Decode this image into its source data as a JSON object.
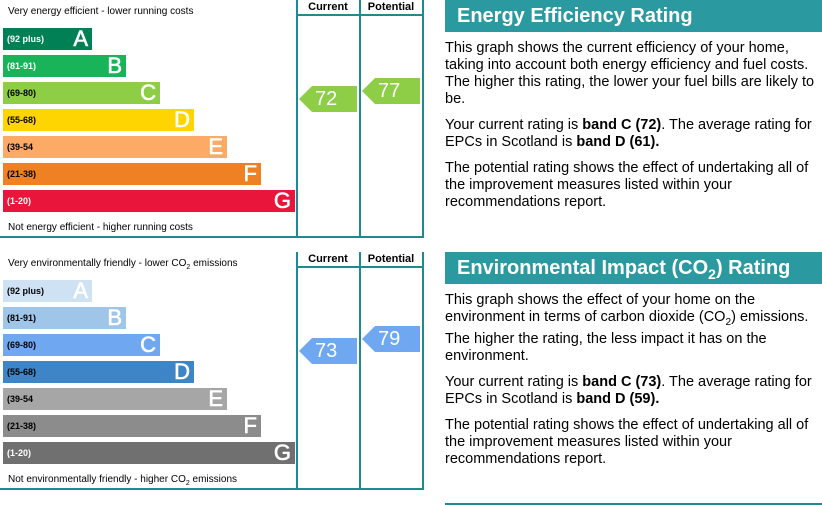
{
  "energy": {
    "top_label": "Very energy efficient - lower running costs",
    "bottom_label": "Not energy efficient - higher running costs",
    "header_current": "Current",
    "header_potential": "Potential",
    "bands": [
      {
        "range": "(92 plus)",
        "letter": "A",
        "color": "#008054",
        "text": "#fff",
        "letter_color": "#fff"
      },
      {
        "range": "(81-91)",
        "letter": "B",
        "color": "#19b459",
        "text": "#fff",
        "letter_color": "#fff"
      },
      {
        "range": "(69-80)",
        "letter": "C",
        "color": "#8dce46",
        "text": "#000",
        "letter_color": "#fff"
      },
      {
        "range": "(55-68)",
        "letter": "D",
        "color": "#ffd500",
        "text": "#000",
        "letter_color": "#fff"
      },
      {
        "range": "(39-54",
        "letter": "E",
        "color": "#fcaa65",
        "text": "#000",
        "letter_color": "#fff"
      },
      {
        "range": "(21-38)",
        "letter": "F",
        "color": "#ef8023",
        "text": "#000",
        "letter_color": "#fff"
      },
      {
        "range": "(1-20)",
        "letter": "G",
        "color": "#e9153b",
        "text": "#fff",
        "letter_color": "#fff"
      }
    ],
    "current": {
      "value": "72",
      "color": "#8dce46"
    },
    "potential": {
      "value": "77",
      "color": "#8dce46"
    }
  },
  "environment": {
    "top_label": "Very environmentally friendly - lower CO",
    "top_label_sub": "2",
    "top_label_end": " emissions",
    "bottom_label": "Not environmentally friendly - higher CO",
    "bottom_label_sub": "2",
    "bottom_label_end": " emissions",
    "header_current": "Current",
    "header_potential": "Potential",
    "bands": [
      {
        "range": "(92 plus)",
        "letter": "A",
        "color": "#cfe2f3",
        "text": "#000",
        "letter_color": "#fff"
      },
      {
        "range": "(81-91)",
        "letter": "B",
        "color": "#9fc5e8",
        "text": "#000",
        "letter_color": "#fff"
      },
      {
        "range": "(69-80)",
        "letter": "C",
        "color": "#6fa8f0",
        "text": "#000",
        "letter_color": "#fff"
      },
      {
        "range": "(55-68)",
        "letter": "D",
        "color": "#3d85c6",
        "text": "#000",
        "letter_color": "#fff"
      },
      {
        "range": "(39-54",
        "letter": "E",
        "color": "#a6a6a6",
        "text": "#000",
        "letter_color": "#fff"
      },
      {
        "range": "(21-38)",
        "letter": "F",
        "color": "#8c8c8c",
        "text": "#000",
        "letter_color": "#fff"
      },
      {
        "range": "(1-20)",
        "letter": "G",
        "color": "#707070",
        "text": "#fff",
        "letter_color": "#fff"
      }
    ],
    "current": {
      "value": "73",
      "color": "#6fa8f0"
    },
    "potential": {
      "value": "79",
      "color": "#6fa8f0"
    }
  },
  "energy_text": {
    "title": "Energy Efficiency Rating",
    "p1": "This graph shows the current efficiency of your home, taking into account both energy efficiency and fuel costs. The higher this rating, the lower your fuel bills are likely to be.",
    "p2_a": "Your current rating is ",
    "p2_b": "band C (72)",
    "p2_c": ". The average rating for EPCs in Scotland is ",
    "p2_d": "band D (61).",
    "p3": "The potential rating shows the effect of undertaking all of the improvement measures listed within your recommendations report."
  },
  "env_text": {
    "title_a": "Environmental Impact (CO",
    "title_sub": "2",
    "title_b": ") Rating",
    "p1_a": "This graph shows the effect of your home on the environment in terms of carbon dioxide (CO",
    "p1_sub": "2",
    "p1_b": ") emissions. The higher the rating, the less impact it has on the environment.",
    "p2_a": "Your current rating is ",
    "p2_b": "band C (73)",
    "p2_c": ". The average rating for EPCs in Scotland is ",
    "p2_d": "band D (59).",
    "p3": "The potential rating shows the effect of undertaking all of the improvement measures listed within your recommendations report."
  }
}
